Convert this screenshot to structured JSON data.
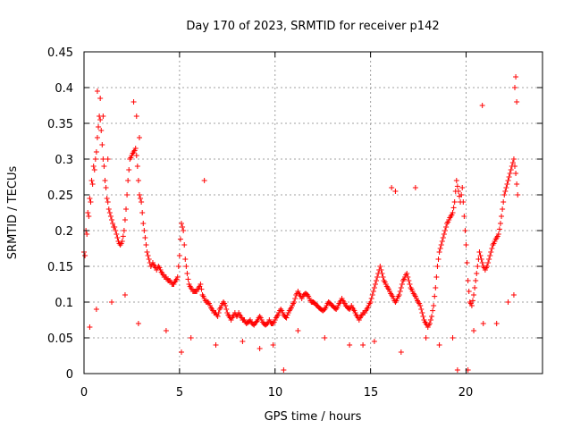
{
  "chart_data": {
    "type": "scatter",
    "title": "Day 170 of 2023, SRMTID for receiver p142",
    "xlabel": "GPS time / hours",
    "ylabel": "SRMTID / TECUs",
    "xlim": [
      0,
      24
    ],
    "ylim": [
      0,
      0.45
    ],
    "xticks": [
      0,
      5,
      10,
      15,
      20
    ],
    "yticks": [
      0,
      0.05,
      0.1,
      0.15,
      0.2,
      0.25,
      0.3,
      0.35,
      0.4,
      0.45
    ],
    "xtick_labels": [
      "0",
      "5",
      "10",
      "15",
      "20"
    ],
    "ytick_labels": [
      "0",
      "0.05",
      "0.1",
      "0.15",
      "0.2",
      "0.25",
      "0.3",
      "0.35",
      "0.4",
      "0.45"
    ],
    "grid": true,
    "marker": "+",
    "color": "#ff0000",
    "series": [
      {
        "name": "p142",
        "x": [
          0.0,
          0.1,
          0.2,
          0.3,
          0.4,
          0.5,
          0.6,
          0.7,
          0.8,
          0.9,
          1.0,
          1.1,
          1.2,
          1.3,
          1.4,
          1.5,
          1.6,
          1.7,
          1.8,
          1.9,
          2.0,
          2.1,
          2.2,
          2.3,
          2.4,
          2.5,
          2.6,
          2.7,
          2.8,
          2.9,
          3.0,
          3.1,
          3.2,
          3.3,
          3.4,
          3.5,
          3.6,
          3.7,
          3.8,
          3.9,
          4.0,
          4.1,
          4.2,
          4.3,
          4.4,
          4.5,
          4.6,
          4.7,
          4.8,
          4.9,
          5.0,
          5.1,
          5.2,
          5.3,
          5.4,
          5.5,
          5.6,
          5.7,
          5.8,
          5.9,
          6.0,
          6.1,
          6.2,
          6.3,
          6.4,
          6.5,
          6.6,
          6.7,
          6.8,
          6.9,
          7.0,
          7.1,
          7.2,
          7.3,
          7.4,
          7.5,
          7.6,
          7.7,
          7.8,
          7.9,
          8.0,
          8.1,
          8.2,
          8.3,
          8.4,
          8.5,
          8.6,
          8.7,
          8.8,
          8.9,
          9.0,
          9.1,
          9.2,
          9.3,
          9.4,
          9.5,
          9.6,
          9.7,
          9.8,
          9.9,
          10.0,
          10.1,
          10.2,
          10.3,
          10.4,
          10.5,
          10.6,
          10.7,
          10.8,
          10.9,
          11.0,
          11.1,
          11.2,
          11.3,
          11.4,
          11.5,
          11.6,
          11.7,
          11.8,
          11.9,
          12.0,
          12.1,
          12.2,
          12.3,
          12.4,
          12.5,
          12.6,
          12.7,
          12.8,
          12.9,
          13.0,
          13.1,
          13.2,
          13.3,
          13.4,
          13.5,
          13.6,
          13.7,
          13.8,
          13.9,
          14.0,
          14.1,
          14.2,
          14.3,
          14.4,
          14.5,
          14.6,
          14.7,
          14.8,
          14.9,
          15.0,
          15.1,
          15.2,
          15.3,
          15.4,
          15.5,
          15.6,
          15.7,
          15.8,
          15.9,
          16.0,
          16.1,
          16.2,
          16.3,
          16.4,
          16.5,
          16.6,
          16.7,
          16.8,
          16.9,
          17.0,
          17.1,
          17.2,
          17.3,
          17.4,
          17.5,
          17.6,
          17.7,
          17.8,
          17.9,
          18.0,
          18.1,
          18.2,
          18.3,
          18.4,
          18.5,
          18.6,
          18.7,
          18.8,
          18.9,
          19.0,
          19.1,
          19.2,
          19.3,
          19.4,
          19.5,
          19.6,
          19.7,
          19.8,
          19.9,
          20.0,
          20.1,
          20.2,
          20.3,
          20.4,
          20.5,
          20.6,
          20.7,
          20.8,
          20.9,
          21.0,
          21.1,
          21.2,
          21.3,
          21.4,
          21.5,
          21.6,
          21.7,
          21.8,
          21.9,
          22.0,
          22.1,
          22.2,
          22.3,
          22.4,
          22.5,
          22.6,
          22.7,
          0.05,
          0.15,
          0.25,
          0.35,
          0.45,
          0.55,
          0.65,
          0.75,
          0.85,
          0.95,
          1.05,
          1.15,
          1.25,
          1.35,
          1.45,
          1.55,
          1.65,
          1.75,
          1.85,
          1.95,
          2.05,
          2.15,
          2.25,
          2.35,
          2.45,
          2.55,
          2.65,
          2.75,
          2.85,
          2.95,
          3.05,
          3.15,
          3.25,
          3.35,
          3.45,
          3.55,
          3.65,
          3.75,
          3.85,
          3.95,
          4.05,
          4.15,
          4.25,
          4.35,
          4.45,
          4.55,
          4.65,
          4.75,
          4.85,
          4.95,
          5.05,
          5.15,
          5.25,
          5.35,
          5.45,
          5.55,
          5.65,
          5.75,
          5.85,
          5.95,
          6.05,
          6.15,
          6.25,
          6.35,
          6.45,
          6.55,
          6.65,
          6.75,
          6.85,
          6.95,
          7.05,
          7.15,
          7.25,
          7.35,
          7.45,
          7.55,
          7.65,
          7.75,
          7.85,
          7.95,
          8.05,
          8.15,
          8.25,
          8.35,
          8.45,
          8.55,
          8.65,
          8.75,
          8.85,
          8.95,
          9.05,
          9.15,
          9.25,
          9.35,
          9.45,
          9.55,
          9.65,
          9.75,
          9.85,
          9.95,
          10.05,
          10.15,
          10.25,
          10.35,
          10.45,
          10.55,
          10.65,
          10.75,
          10.85,
          10.95,
          11.05,
          11.15,
          11.25,
          11.35,
          11.45,
          11.55,
          11.65,
          11.75,
          11.85,
          11.95,
          12.05,
          12.15,
          12.25,
          12.35,
          12.45,
          12.55,
          12.65,
          12.75,
          12.85,
          12.95,
          13.05,
          13.15,
          13.25,
          13.35,
          13.45,
          13.55,
          13.65,
          13.75,
          13.85,
          13.95,
          14.05,
          14.15,
          14.25,
          14.35,
          14.45,
          14.55,
          14.65,
          14.75,
          14.85,
          14.95,
          15.05,
          15.15,
          15.25,
          15.35,
          15.45,
          15.55,
          15.65,
          15.75,
          15.85,
          15.95,
          16.05,
          16.15,
          16.25,
          16.35,
          16.45,
          16.55,
          16.65,
          16.75,
          16.85,
          16.95,
          17.05,
          17.15,
          17.25,
          17.35,
          17.45,
          17.55,
          17.65,
          17.75,
          17.85,
          17.95,
          18.05,
          18.15,
          18.25,
          18.35,
          18.45,
          18.55,
          18.65,
          18.75,
          18.85,
          18.95,
          19.05,
          19.15,
          19.25,
          19.35,
          19.45,
          19.55,
          19.65,
          19.75,
          19.85,
          19.95,
          20.05,
          20.15,
          20.25,
          20.35,
          20.45,
          20.55,
          20.65,
          20.75,
          20.85,
          20.95,
          21.05,
          21.15,
          21.25,
          21.35,
          21.45,
          21.55,
          21.65,
          21.75,
          21.85,
          21.95,
          22.05,
          22.15,
          22.25,
          22.35,
          22.45,
          22.55,
          22.65,
          0.7,
          0.85,
          1.0,
          1.25,
          2.6,
          2.75,
          2.9,
          6.3,
          10.45,
          16.1,
          16.3,
          17.35,
          19.55,
          20.1,
          20.85,
          22.55,
          22.6,
          22.65,
          0.3,
          0.65,
          1.45,
          2.15,
          2.85,
          4.3,
          5.1,
          5.6,
          6.9,
          8.3,
          9.2,
          9.9,
          11.2,
          12.6,
          13.9,
          14.6,
          15.2,
          16.6,
          17.9,
          18.6,
          19.3,
          20.4,
          20.9,
          21.6,
          22.2,
          22.5
        ],
        "y": [
          0.17,
          0.2,
          0.225,
          0.245,
          0.27,
          0.29,
          0.3,
          0.33,
          0.36,
          0.34,
          0.3,
          0.27,
          0.245,
          0.23,
          0.22,
          0.21,
          0.205,
          0.195,
          0.185,
          0.18,
          0.185,
          0.2,
          0.23,
          0.27,
          0.3,
          0.305,
          0.31,
          0.315,
          0.29,
          0.25,
          0.24,
          0.21,
          0.19,
          0.17,
          0.16,
          0.15,
          0.155,
          0.15,
          0.145,
          0.15,
          0.145,
          0.14,
          0.135,
          0.135,
          0.13,
          0.13,
          0.125,
          0.125,
          0.13,
          0.135,
          0.165,
          0.21,
          0.2,
          0.16,
          0.14,
          0.125,
          0.12,
          0.115,
          0.115,
          0.115,
          0.12,
          0.125,
          0.11,
          0.105,
          0.1,
          0.1,
          0.095,
          0.09,
          0.085,
          0.085,
          0.08,
          0.09,
          0.095,
          0.1,
          0.095,
          0.085,
          0.08,
          0.075,
          0.08,
          0.085,
          0.08,
          0.085,
          0.08,
          0.075,
          0.075,
          0.07,
          0.072,
          0.075,
          0.07,
          0.068,
          0.072,
          0.075,
          0.08,
          0.075,
          0.07,
          0.068,
          0.07,
          0.075,
          0.07,
          0.07,
          0.075,
          0.08,
          0.085,
          0.09,
          0.085,
          0.08,
          0.078,
          0.085,
          0.09,
          0.095,
          0.1,
          0.11,
          0.115,
          0.11,
          0.105,
          0.11,
          0.112,
          0.11,
          0.105,
          0.1,
          0.1,
          0.098,
          0.095,
          0.092,
          0.09,
          0.088,
          0.09,
          0.095,
          0.1,
          0.098,
          0.095,
          0.092,
          0.09,
          0.095,
          0.1,
          0.105,
          0.1,
          0.095,
          0.092,
          0.09,
          0.095,
          0.09,
          0.085,
          0.08,
          0.075,
          0.08,
          0.085,
          0.085,
          0.09,
          0.095,
          0.1,
          0.11,
          0.12,
          0.13,
          0.14,
          0.15,
          0.14,
          0.13,
          0.125,
          0.12,
          0.115,
          0.11,
          0.105,
          0.1,
          0.105,
          0.11,
          0.12,
          0.13,
          0.135,
          0.14,
          0.13,
          0.12,
          0.115,
          0.11,
          0.105,
          0.1,
          0.095,
          0.085,
          0.075,
          0.07,
          0.065,
          0.07,
          0.08,
          0.095,
          0.12,
          0.15,
          0.17,
          0.18,
          0.19,
          0.2,
          0.21,
          0.215,
          0.22,
          0.225,
          0.24,
          0.27,
          0.255,
          0.24,
          0.26,
          0.22,
          0.18,
          0.13,
          0.1,
          0.095,
          0.11,
          0.13,
          0.15,
          0.17,
          0.16,
          0.15,
          0.145,
          0.15,
          0.16,
          0.17,
          0.18,
          0.185,
          0.19,
          0.195,
          0.21,
          0.23,
          0.25,
          0.26,
          0.27,
          0.28,
          0.29,
          0.3,
          0.28,
          0.25,
          0.165,
          0.195,
          0.22,
          0.24,
          0.265,
          0.285,
          0.31,
          0.345,
          0.355,
          0.32,
          0.29,
          0.26,
          0.24,
          0.225,
          0.215,
          0.205,
          0.2,
          0.19,
          0.182,
          0.182,
          0.192,
          0.215,
          0.25,
          0.285,
          0.302,
          0.308,
          0.312,
          0.305,
          0.27,
          0.245,
          0.225,
          0.2,
          0.18,
          0.165,
          0.155,
          0.152,
          0.152,
          0.148,
          0.148,
          0.148,
          0.142,
          0.138,
          0.135,
          0.132,
          0.13,
          0.128,
          0.125,
          0.128,
          0.132,
          0.15,
          0.188,
          0.205,
          0.18,
          0.15,
          0.132,
          0.122,
          0.118,
          0.115,
          0.115,
          0.118,
          0.122,
          0.118,
          0.108,
          0.102,
          0.1,
          0.098,
          0.092,
          0.088,
          0.085,
          0.082,
          0.085,
          0.092,
          0.098,
          0.098,
          0.09,
          0.082,
          0.078,
          0.078,
          0.082,
          0.082,
          0.082,
          0.082,
          0.078,
          0.075,
          0.072,
          0.071,
          0.073,
          0.072,
          0.069,
          0.07,
          0.073,
          0.078,
          0.078,
          0.072,
          0.069,
          0.069,
          0.072,
          0.072,
          0.07,
          0.072,
          0.078,
          0.082,
          0.088,
          0.088,
          0.082,
          0.079,
          0.082,
          0.088,
          0.092,
          0.098,
          0.105,
          0.112,
          0.112,
          0.108,
          0.108,
          0.111,
          0.111,
          0.108,
          0.102,
          0.1,
          0.099,
          0.096,
          0.094,
          0.091,
          0.089,
          0.089,
          0.092,
          0.098,
          0.099,
          0.096,
          0.094,
          0.091,
          0.092,
          0.098,
          0.102,
          0.102,
          0.098,
          0.094,
          0.091,
          0.092,
          0.092,
          0.088,
          0.082,
          0.078,
          0.078,
          0.082,
          0.085,
          0.088,
          0.092,
          0.098,
          0.105,
          0.115,
          0.125,
          0.135,
          0.145,
          0.145,
          0.135,
          0.128,
          0.122,
          0.118,
          0.112,
          0.108,
          0.102,
          0.102,
          0.108,
          0.115,
          0.125,
          0.132,
          0.138,
          0.135,
          0.125,
          0.118,
          0.112,
          0.108,
          0.102,
          0.098,
          0.09,
          0.08,
          0.072,
          0.068,
          0.068,
          0.075,
          0.088,
          0.108,
          0.135,
          0.16,
          0.175,
          0.185,
          0.195,
          0.205,
          0.212,
          0.218,
          0.222,
          0.232,
          0.255,
          0.262,
          0.248,
          0.25,
          0.24,
          0.2,
          0.155,
          0.115,
          0.098,
          0.102,
          0.12,
          0.14,
          0.16,
          0.165,
          0.155,
          0.148,
          0.148,
          0.155,
          0.165,
          0.175,
          0.182,
          0.188,
          0.192,
          0.202,
          0.22,
          0.24,
          0.255,
          0.265,
          0.275,
          0.285,
          0.295,
          0.29,
          0.265,
          0.395,
          0.385,
          0.36,
          0.3,
          0.38,
          0.36,
          0.33,
          0.27,
          0.005,
          0.26,
          0.255,
          0.26,
          0.005,
          0.005,
          0.375,
          0.4,
          0.415,
          0.38,
          0.065,
          0.09,
          0.1,
          0.11,
          0.07,
          0.06,
          0.03,
          0.05,
          0.04,
          0.045,
          0.035,
          0.04,
          0.06,
          0.05,
          0.04,
          0.04,
          0.045,
          0.03,
          0.05,
          0.04,
          0.05,
          0.06,
          0.07,
          0.07,
          0.1,
          0.11
        ]
      }
    ]
  }
}
